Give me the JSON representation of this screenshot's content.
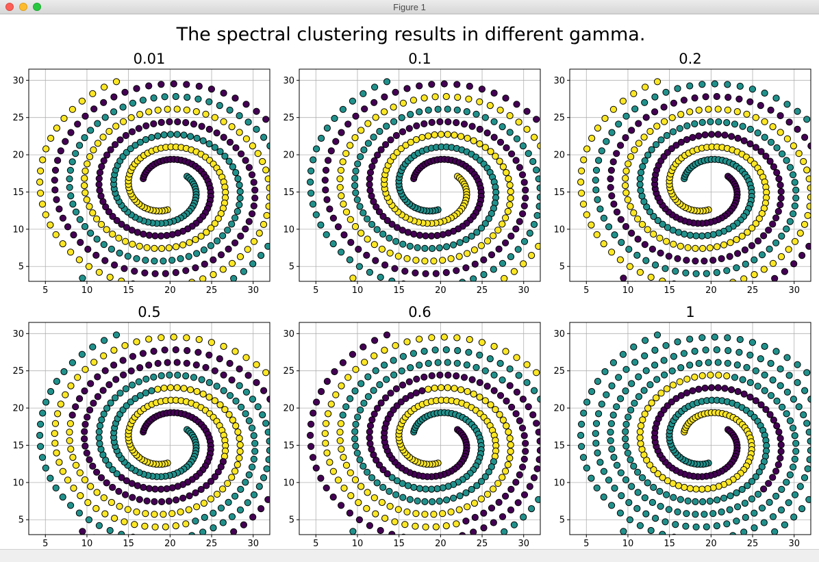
{
  "window": {
    "title": "Figure 1"
  },
  "figure": {
    "suptitle": "The spectral clustering results in different gamma."
  },
  "colors": {
    "purple": "#440154",
    "teal": "#21918c",
    "yellow": "#fde725",
    "edge": "#000000",
    "grid": "#b0b0b0"
  },
  "chart_data": [
    {
      "type": "scatter",
      "title": "0.01",
      "xlim": [
        3,
        32
      ],
      "ylim": [
        3,
        31.5
      ],
      "xticks": [
        5,
        10,
        15,
        20,
        25,
        30
      ],
      "yticks": [
        5,
        10,
        15,
        20,
        25,
        30
      ],
      "grid": true,
      "series": [
        {
          "arm": "A",
          "colors": [
            "yellow"
          ]
        },
        {
          "arm": "B",
          "colors": [
            "purple"
          ]
        },
        {
          "arm": "C",
          "colors": [
            "teal"
          ]
        }
      ]
    },
    {
      "type": "scatter",
      "title": "0.1",
      "xlim": [
        3,
        32
      ],
      "ylim": [
        3,
        31.5
      ],
      "xticks": [
        5,
        10,
        15,
        20,
        25,
        30
      ],
      "yticks": [
        5,
        10,
        15,
        20,
        25,
        30
      ],
      "grid": true,
      "series": [
        {
          "arm": "A",
          "colors": [
            "teal"
          ]
        },
        {
          "arm": "B",
          "colors": [
            "purple"
          ]
        },
        {
          "arm": "C",
          "colors": [
            "yellow"
          ]
        }
      ]
    },
    {
      "type": "scatter",
      "title": "0.2",
      "xlim": [
        3,
        32
      ],
      "ylim": [
        3,
        31.5
      ],
      "xticks": [
        5,
        10,
        15,
        20,
        25,
        30
      ],
      "yticks": [
        5,
        10,
        15,
        20,
        25,
        30
      ],
      "grid": true,
      "series": [
        {
          "arm": "A",
          "colors": [
            "yellow"
          ]
        },
        {
          "arm": "B",
          "colors": [
            "teal"
          ]
        },
        {
          "arm": "C",
          "colors": [
            "purple"
          ]
        }
      ]
    },
    {
      "type": "scatter",
      "title": "0.5",
      "xlim": [
        3,
        32
      ],
      "ylim": [
        3,
        31.5
      ],
      "xticks": [
        5,
        10,
        15,
        20,
        25,
        30
      ],
      "yticks": [
        5,
        10,
        15,
        20,
        25,
        30
      ],
      "grid": true,
      "series": [
        {
          "arm": "A",
          "colors": [
            "yellow",
            "purple",
            "teal"
          ]
        },
        {
          "arm": "B",
          "colors": [
            "purple",
            "teal",
            "yellow"
          ]
        },
        {
          "arm": "C",
          "colors": [
            "teal",
            "yellow",
            "purple"
          ]
        }
      ]
    },
    {
      "type": "scatter",
      "title": "0.6",
      "xlim": [
        3,
        32
      ],
      "ylim": [
        3,
        31.5
      ],
      "xticks": [
        5,
        10,
        15,
        20,
        25,
        30
      ],
      "yticks": [
        5,
        10,
        15,
        20,
        25,
        30
      ],
      "grid": true,
      "series": [
        {
          "arm": "A",
          "colors": [
            "yellow",
            "teal",
            "purple"
          ]
        },
        {
          "arm": "B",
          "colors": [
            "teal",
            "purple",
            "yellow"
          ]
        },
        {
          "arm": "C",
          "colors": [
            "purple",
            "yellow",
            "teal"
          ]
        }
      ]
    },
    {
      "type": "scatter",
      "title": "1",
      "xlim": [
        3,
        32
      ],
      "ylim": [
        3,
        31.5
      ],
      "xticks": [
        5,
        10,
        15,
        20,
        25,
        30
      ],
      "yticks": [
        5,
        10,
        15,
        20,
        25,
        30
      ],
      "grid": true,
      "series": [
        {
          "arm": "A",
          "colors": [
            "teal"
          ]
        },
        {
          "arm": "B",
          "colors": [
            "yellow",
            "teal"
          ]
        },
        {
          "arm": "C",
          "colors": [
            "purple",
            "teal"
          ]
        }
      ]
    }
  ]
}
